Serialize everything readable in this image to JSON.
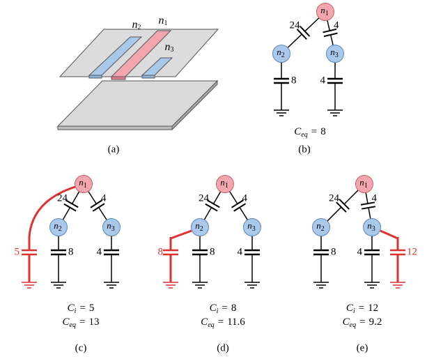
{
  "panel_a": {
    "labels": [
      {
        "base": "n",
        "sub": "2"
      },
      {
        "base": "n",
        "sub": "1"
      },
      {
        "base": "n",
        "sub": "3"
      }
    ],
    "caption": "(a)"
  },
  "panel_b": {
    "nodes": [
      {
        "base": "n",
        "sub": "1"
      },
      {
        "base": "n",
        "sub": "2"
      },
      {
        "base": "n",
        "sub": "3"
      }
    ],
    "edge_caps": [
      24,
      4
    ],
    "ground_caps": [
      8,
      4
    ],
    "equations": [
      {
        "lhs": "C",
        "sub": "eq",
        "op": "=",
        "rhs": 8
      }
    ],
    "caption": "(b)"
  },
  "panel_c": {
    "nodes": [
      {
        "base": "n",
        "sub": "1"
      },
      {
        "base": "n",
        "sub": "2"
      },
      {
        "base": "n",
        "sub": "3"
      }
    ],
    "edge_caps": [
      24,
      4
    ],
    "ground_caps": [
      8,
      4
    ],
    "added_cap": 5,
    "equations": [
      {
        "lhs": "C",
        "sub": "i",
        "op": "=",
        "rhs": 5
      },
      {
        "lhs": "C",
        "sub": "eq",
        "op": "=",
        "rhs": 13
      }
    ],
    "caption": "(c)"
  },
  "panel_d": {
    "nodes": [
      {
        "base": "n",
        "sub": "1"
      },
      {
        "base": "n",
        "sub": "2"
      },
      {
        "base": "n",
        "sub": "3"
      }
    ],
    "edge_caps": [
      24,
      4
    ],
    "ground_caps": [
      8,
      4
    ],
    "added_cap": 8,
    "equations": [
      {
        "lhs": "C",
        "sub": "i",
        "op": "=",
        "rhs": 8
      },
      {
        "lhs": "C",
        "sub": "eq",
        "op": "=",
        "rhs": 11.6
      }
    ],
    "caption": "(d)"
  },
  "panel_e": {
    "nodes": [
      {
        "base": "n",
        "sub": "1"
      },
      {
        "base": "n",
        "sub": "2"
      },
      {
        "base": "n",
        "sub": "3"
      }
    ],
    "edge_caps": [
      24,
      4
    ],
    "ground_caps": [
      8,
      4
    ],
    "added_cap": 12,
    "equations": [
      {
        "lhs": "C",
        "sub": "i",
        "op": "=",
        "rhs": 12
      },
      {
        "lhs": "C",
        "sub": "eq",
        "op": "=",
        "rhs": 9.2
      }
    ],
    "caption": "(e)"
  }
}
